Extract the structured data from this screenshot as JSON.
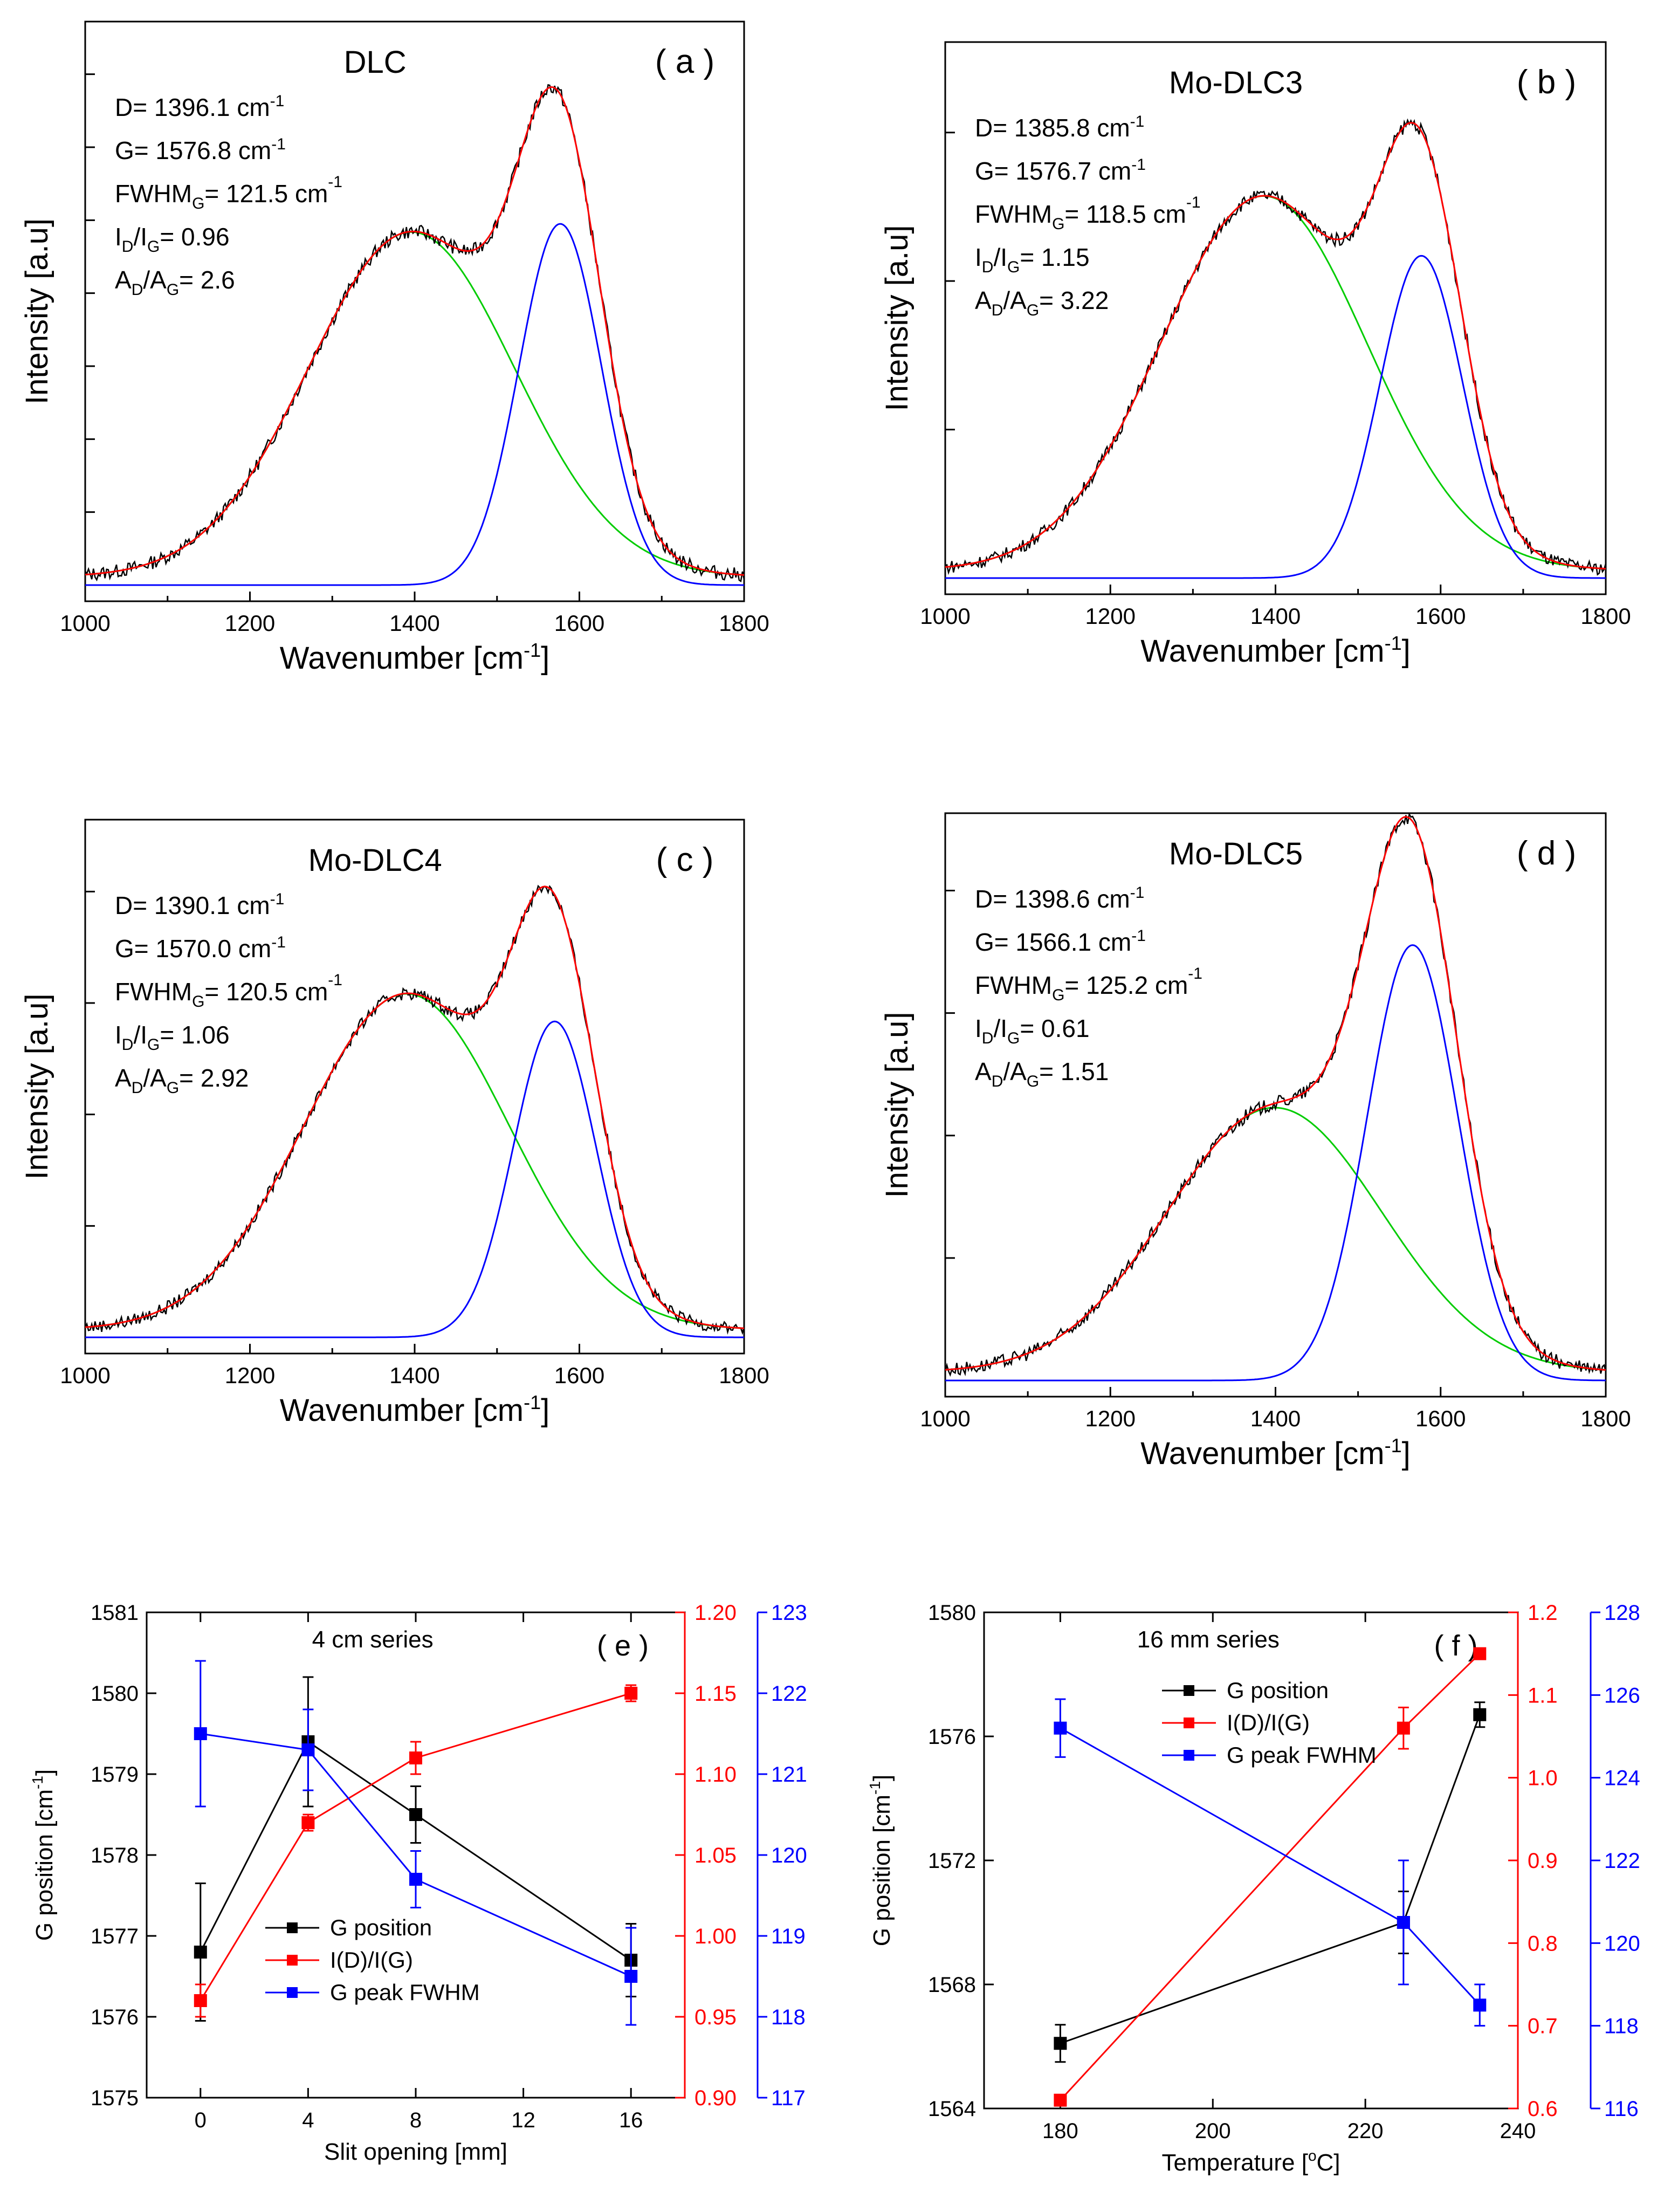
{
  "chart_data": [
    {
      "id": "a",
      "type": "line",
      "title": "DLC",
      "panel_label": "( a )",
      "xlabel": "Wavenumber [cm",
      "xlabel_sup": "-1",
      "xlabel_end": "]",
      "ylabel": "Intensity [a.u]",
      "xlim": [
        1000,
        1800
      ],
      "ylim": [
        0,
        1.0
      ],
      "xticks": [
        1000,
        1200,
        1400,
        1600,
        1800
      ],
      "yticks_unlabeled": 8,
      "annotations": [
        {
          "pre": "D= 1396.1 cm",
          "sup": "-1",
          "post": ""
        },
        {
          "pre": "G= 1576.8 cm",
          "sup": "-1",
          "post": ""
        },
        {
          "pre": "FWHM",
          "sub": "G",
          "mid": "= 121.5 cm",
          "sup": "-1"
        },
        {
          "pre": "I",
          "sub": "D",
          "mid": "/I",
          "sub2": "G",
          "post": "= 0.96"
        },
        {
          "pre": "A",
          "sub": "D",
          "mid": "/A",
          "sub2": "G",
          "post": "= 2.6"
        }
      ],
      "peaks": {
        "D": {
          "center": 1396.1,
          "height": 0.63,
          "width": 125
        },
        "G": {
          "center": 1576.8,
          "height": 0.66,
          "width": 50
        }
      },
      "series": [
        {
          "name": "measured",
          "color": "#000000"
        },
        {
          "name": "fit",
          "color": "#ff0000"
        },
        {
          "name": "D peak",
          "color": "#00cc00"
        },
        {
          "name": "G peak",
          "color": "#0000ff"
        }
      ]
    },
    {
      "id": "b",
      "type": "line",
      "title": "Mo-DLC3",
      "panel_label": "( b )",
      "xlabel": "Wavenumber [cm",
      "xlabel_sup": "-1",
      "xlabel_end": "]",
      "ylabel": "Intensity [a.u]",
      "xlim": [
        1000,
        1800
      ],
      "ylim": [
        0,
        1.0
      ],
      "xticks": [
        1000,
        1200,
        1400,
        1600,
        1800
      ],
      "yticks_unlabeled": 4,
      "annotations": [
        {
          "pre": "D= 1385.8 cm",
          "sup": "-1",
          "post": ""
        },
        {
          "pre": "G= 1576.7 cm",
          "sup": "-1",
          "post": ""
        },
        {
          "pre": "FWHM",
          "sub": "G",
          "mid": "= 118.5 cm",
          "sup": "-1"
        },
        {
          "pre": "I",
          "sub": "D",
          "mid": "/I",
          "sub2": "G",
          "post": "= 1.15"
        },
        {
          "pre": "A",
          "sub": "D",
          "mid": "/A",
          "sub2": "G",
          "post": "= 3.22"
        }
      ],
      "peaks": {
        "D": {
          "center": 1385.8,
          "height": 0.72,
          "width": 125
        },
        "G": {
          "center": 1576.7,
          "height": 0.62,
          "width": 50
        }
      },
      "series": [
        {
          "name": "measured",
          "color": "#000000"
        },
        {
          "name": "fit",
          "color": "#ff0000"
        },
        {
          "name": "D peak",
          "color": "#00cc00"
        },
        {
          "name": "G peak",
          "color": "#0000ff"
        }
      ]
    },
    {
      "id": "c",
      "type": "line",
      "title": "Mo-DLC4",
      "panel_label": "( c )",
      "xlabel": "Wavenumber [cm",
      "xlabel_sup": "-1",
      "xlabel_end": "]",
      "ylabel": "Intensity [a.u]",
      "xlim": [
        1000,
        1800
      ],
      "ylim": [
        0,
        1.0
      ],
      "xticks": [
        1000,
        1200,
        1400,
        1600,
        1800
      ],
      "yticks_unlabeled": 5,
      "annotations": [
        {
          "pre": "D= 1390.1 cm",
          "sup": "-1",
          "post": ""
        },
        {
          "pre": "G= 1570.0 cm",
          "sup": "-1",
          "post": ""
        },
        {
          "pre": "FWHM",
          "sub": "G",
          "mid": "= 120.5 cm",
          "sup": "-1"
        },
        {
          "pre": "I",
          "sub": "D",
          "mid": "/I",
          "sub2": "G",
          "post": "= 1.06"
        },
        {
          "pre": "A",
          "sub": "D",
          "mid": "/A",
          "sub2": "G",
          "post": "= 2.92"
        }
      ],
      "peaks": {
        "D": {
          "center": 1390.1,
          "height": 0.67,
          "width": 125
        },
        "G": {
          "center": 1570.0,
          "height": 0.63,
          "width": 50
        }
      },
      "series": [
        {
          "name": "measured",
          "color": "#000000"
        },
        {
          "name": "fit",
          "color": "#ff0000"
        },
        {
          "name": "D peak",
          "color": "#00cc00"
        },
        {
          "name": "G peak",
          "color": "#0000ff"
        }
      ]
    },
    {
      "id": "d",
      "type": "line",
      "title": "Mo-DLC5",
      "panel_label": "( d )",
      "xlabel": "Wavenumber [cm",
      "xlabel_sup": "-1",
      "xlabel_end": "]",
      "ylabel": "Intensity [a.u]",
      "xlim": [
        1000,
        1800
      ],
      "ylim": [
        0,
        1.0
      ],
      "xticks": [
        1000,
        1200,
        1400,
        1600,
        1800
      ],
      "yticks_unlabeled": 5,
      "annotations": [
        {
          "pre": "D= 1398.6 cm",
          "sup": "-1",
          "post": ""
        },
        {
          "pre": "G= 1566.1 cm",
          "sup": "-1",
          "post": ""
        },
        {
          "pre": "FWHM",
          "sub": "G",
          "mid": "= 125.2 cm",
          "sup": "-1"
        },
        {
          "pre": "I",
          "sub": "D",
          "mid": "/I",
          "sub2": "G",
          "post": "= 0.61"
        },
        {
          "pre": "A",
          "sub": "D",
          "mid": "/A",
          "sub2": "G",
          "post": "= 1.51"
        }
      ],
      "peaks": {
        "D": {
          "center": 1398.6,
          "height": 0.48,
          "width": 130
        },
        "G": {
          "center": 1566.1,
          "height": 0.79,
          "width": 55
        }
      },
      "series": [
        {
          "name": "measured",
          "color": "#000000"
        },
        {
          "name": "fit",
          "color": "#ff0000"
        },
        {
          "name": "D peak",
          "color": "#00cc00"
        },
        {
          "name": "G peak",
          "color": "#0000ff"
        }
      ]
    },
    {
      "id": "e",
      "type": "line",
      "title": "4 cm series",
      "panel_label": "( e )",
      "xlabel": "Slit opening [mm]",
      "ylabel": "G position [cm",
      "ylabel_sup": "-1",
      "ylabel_end": "]",
      "x": [
        0,
        4,
        8,
        16
      ],
      "xlim": [
        -2,
        18
      ],
      "xticks": [
        0,
        4,
        8,
        12,
        16
      ],
      "axes": {
        "left": {
          "min": 1575,
          "max": 1581,
          "ticks": [
            1575,
            1576,
            1577,
            1578,
            1579,
            1580,
            1581
          ],
          "color": "#000000"
        },
        "right1": {
          "min": 0.9,
          "max": 1.2,
          "ticks": [
            "0.90",
            "0.95",
            "1.00",
            "1.05",
            "1.10",
            "1.15",
            "1.20"
          ],
          "color": "#ff0000"
        },
        "right2": {
          "min": 117,
          "max": 123,
          "ticks": [
            117,
            118,
            119,
            120,
            121,
            122,
            123
          ],
          "color": "#0000ff"
        }
      },
      "series": [
        {
          "name": "G position",
          "axis": "left",
          "color": "#000000",
          "values": [
            1576.8,
            1579.4,
            1578.5,
            1576.7
          ],
          "errors": [
            0.85,
            0.8,
            0.35,
            0.45
          ]
        },
        {
          "name": "I(D)/I(G)",
          "axis": "right1",
          "color": "#ff0000",
          "values": [
            0.96,
            1.07,
            1.11,
            1.15
          ],
          "errors": [
            0.01,
            0.005,
            0.01,
            0.005
          ]
        },
        {
          "name": "G peak FWHM",
          "axis": "right2",
          "color": "#0000ff",
          "values": [
            121.5,
            121.3,
            119.7,
            118.5
          ],
          "errors": [
            0.9,
            0.5,
            0.35,
            0.6
          ]
        }
      ],
      "legend": "lower-center"
    },
    {
      "id": "f",
      "type": "line",
      "title": "16 mm series",
      "panel_label": "( f )",
      "xlabel": "Temperature [",
      "xlabel_sup": "o",
      "xlabel_end": "C]",
      "ylabel": "G position [cm",
      "ylabel_sup": "-1",
      "ylabel_end": "]",
      "x": [
        180,
        225,
        235
      ],
      "xlim": [
        170,
        240
      ],
      "xticks": [
        180,
        200,
        220,
        240
      ],
      "axes": {
        "left": {
          "min": 1564,
          "max": 1580,
          "ticks": [
            1564,
            1568,
            1572,
            1576,
            1580
          ],
          "color": "#000000"
        },
        "right1": {
          "min": 0.6,
          "max": 1.2,
          "ticks": [
            "0.6",
            "0.7",
            "0.8",
            "0.9",
            "1.0",
            "1.1",
            "1.2"
          ],
          "color": "#ff0000"
        },
        "right2": {
          "min": 116,
          "max": 128,
          "ticks": [
            116,
            118,
            120,
            122,
            124,
            126,
            128
          ],
          "color": "#0000ff"
        }
      },
      "series": [
        {
          "name": "G position",
          "axis": "left",
          "color": "#000000",
          "values": [
            1566.1,
            1570.0,
            1576.7
          ],
          "errors": [
            0.6,
            1.0,
            0.4
          ]
        },
        {
          "name": "I(D)/I(G)",
          "axis": "right1",
          "color": "#ff0000",
          "values": [
            0.61,
            1.06,
            1.15
          ],
          "errors": [
            0.005,
            0.025,
            0.005
          ]
        },
        {
          "name": "G peak FWHM",
          "axis": "right2",
          "color": "#0000ff",
          "values": [
            125.2,
            120.5,
            118.5
          ],
          "errors": [
            0.7,
            1.5,
            0.5
          ]
        }
      ],
      "legend": "top-left"
    }
  ]
}
